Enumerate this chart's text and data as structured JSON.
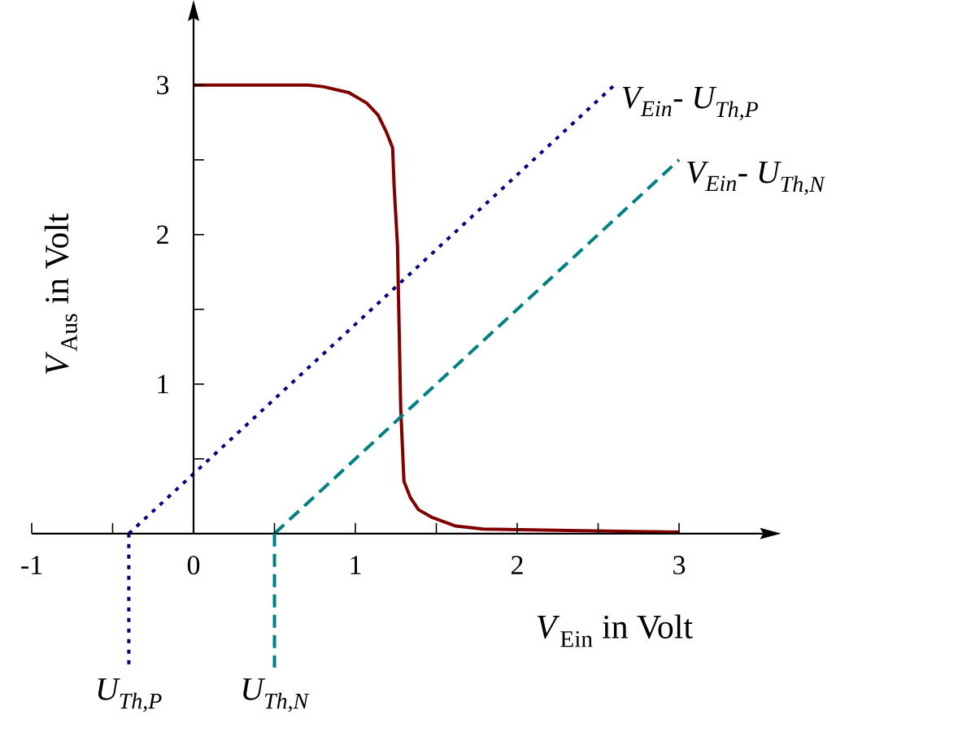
{
  "chart_data": {
    "type": "line",
    "xlabel": "*V*$_{Ein}$  in Volt",
    "ylabel": "*V*$_{Aus}$ in Volt",
    "xlim": [
      -1,
      3.52
    ],
    "ylim": [
      0,
      3.45
    ],
    "xticks": [
      -1,
      {
        "value": -0.5,
        "label": null
      },
      0,
      {
        "value": 0.5,
        "label": null
      },
      1,
      {
        "value": 1.5,
        "label": null
      },
      2,
      {
        "value": 2.5,
        "label": null
      },
      3
    ],
    "yticks": [
      {
        "value": 0.5,
        "label": null
      },
      1,
      {
        "value": 1.5,
        "label": null
      },
      2,
      {
        "value": 2.5,
        "label": null
      },
      3
    ],
    "ref_lines": [
      {
        "axis": "x",
        "value": -0.4,
        "label": "U$_{Th,P}$",
        "color": "#000080",
        "line_style": "dotted"
      },
      {
        "axis": "x",
        "value": 0.5,
        "label": "U$_{Th,N}$",
        "color": "#008080",
        "line_style": "dashed"
      }
    ],
    "marker": "none",
    "grid": false,
    "legend": false,
    "series": [
      {
        "color": "#800000",
        "line_style": "solid",
        "x": [
          0,
          0.71,
          0.8,
          0.96,
          1.07,
          1.14,
          1.19,
          1.23,
          1.24,
          1.26,
          1.27,
          1.28,
          1.3,
          1.34,
          1.39,
          1.47,
          1.62,
          1.79,
          2.32,
          3.0
        ],
        "values": [
          3.0,
          3.0,
          2.99,
          2.95,
          2.88,
          2.8,
          2.69,
          2.58,
          2.31,
          1.93,
          1.39,
          0.84,
          0.35,
          0.24,
          0.16,
          0.11,
          0.05,
          0.03,
          0.02,
          0.01
        ]
      },
      {
        "name": "V$_{Ein}$- U$_{Th,P}$",
        "color": "#000080",
        "line_style": "dotted",
        "x": [
          -0.4,
          2.6
        ],
        "values": [
          0,
          3.0
        ]
      },
      {
        "name": "V$_{Ein}$- U$_{Th,N}$",
        "color": "#008080",
        "line_style": "dashed",
        "x": [
          0.5,
          3.0
        ],
        "values": [
          0,
          2.5
        ]
      }
    ]
  }
}
